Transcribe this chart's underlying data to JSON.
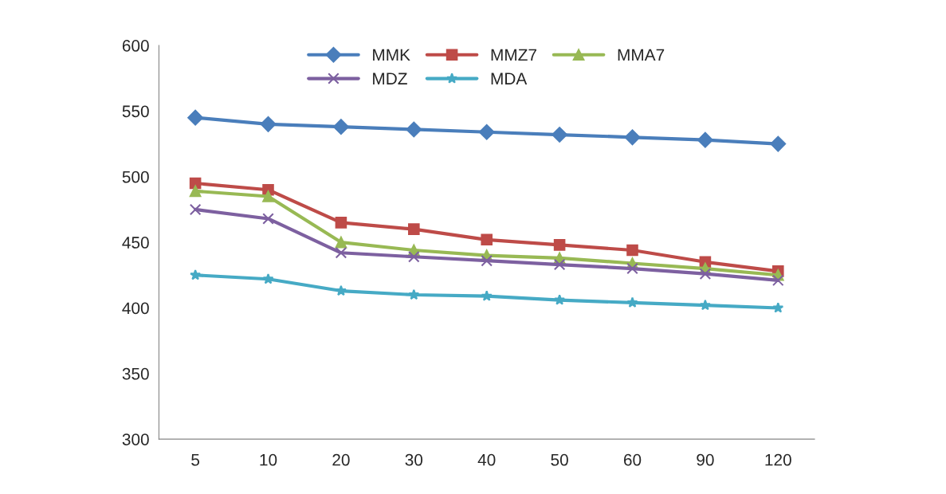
{
  "chart_data": {
    "type": "line",
    "categories": [
      "5",
      "10",
      "20",
      "30",
      "40",
      "50",
      "60",
      "90",
      "120"
    ],
    "ylim": [
      300,
      600
    ],
    "yticks": [
      300,
      350,
      400,
      450,
      500,
      550,
      600
    ],
    "grid": false,
    "legend": "top",
    "series": [
      {
        "name": "MMK",
        "color": "#4a7ebb",
        "marker": "diamond",
        "values": [
          545,
          540,
          538,
          536,
          534,
          532,
          530,
          528,
          525
        ]
      },
      {
        "name": "MMZ7",
        "color": "#be4b48",
        "marker": "square",
        "values": [
          495,
          490,
          465,
          460,
          452,
          448,
          444,
          435,
          428
        ]
      },
      {
        "name": "MMA7",
        "color": "#98b954",
        "marker": "triangle",
        "values": [
          489,
          485,
          450,
          444,
          440,
          438,
          434,
          430,
          425
        ]
      },
      {
        "name": "MDZ",
        "color": "#7d60a0",
        "marker": "cross",
        "values": [
          475,
          468,
          442,
          439,
          436,
          433,
          430,
          426,
          421
        ]
      },
      {
        "name": "MDA",
        "color": "#46aac5",
        "marker": "star",
        "values": [
          425,
          422,
          413,
          410,
          409,
          406,
          404,
          402,
          400
        ]
      }
    ]
  }
}
